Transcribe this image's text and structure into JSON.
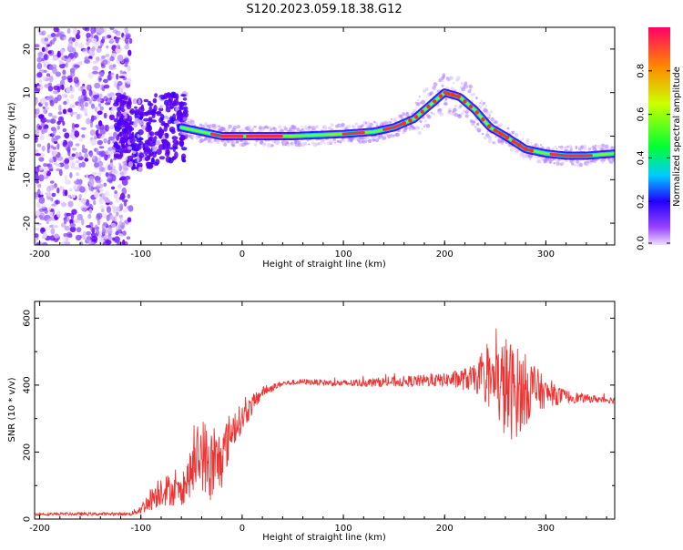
{
  "title": "S120.2023.059.18.38.G12",
  "colors": {
    "snr_line": "#ee3333",
    "spectrogram_ridge": "#ee3333",
    "colorbar_stops": [
      "#eeddff",
      "#7700ff",
      "#0000ff",
      "#00ccff",
      "#00ff33",
      "#ccff00",
      "#ff8800",
      "#ff0066"
    ]
  },
  "chart_data": [
    {
      "id": "spectrogram",
      "type": "heatmap",
      "title": "",
      "xlabel": "Height of straight line (km)",
      "ylabel": "Frequency (Hz)",
      "xlim": [
        -205,
        368
      ],
      "ylim": [
        -25,
        25
      ],
      "x_ticks": [
        -200,
        -100,
        0,
        100,
        200,
        300
      ],
      "y_ticks": [
        -20,
        -10,
        0,
        10,
        20
      ],
      "colorbar": {
        "label": "Normalized spectral amplitude",
        "range": [
          0,
          1
        ],
        "ticks": [
          "0.0",
          "0.2",
          "0.4",
          "0.6",
          "0.8"
        ]
      },
      "ridge": {
        "x": [
          -120,
          -100,
          -80,
          -60,
          -40,
          -20,
          0,
          50,
          100,
          130,
          150,
          170,
          185,
          200,
          215,
          230,
          245,
          260,
          280,
          300,
          320,
          340,
          368
        ],
        "y": [
          2,
          0,
          2,
          2,
          1,
          0,
          0,
          0,
          0.5,
          1,
          2,
          4,
          7,
          10,
          9,
          6,
          2,
          0,
          -3,
          -4,
          -4.5,
          -4.5,
          -4
        ]
      },
      "noise_region": [
        -205,
        -120
      ]
    },
    {
      "id": "snr",
      "type": "line",
      "title": "",
      "xlabel": "Height of straight line (km)",
      "ylabel": "SNR (10 * v/v)",
      "xlim": [
        -205,
        368
      ],
      "ylim": [
        0,
        650
      ],
      "x_ticks": [
        -200,
        -100,
        0,
        100,
        200,
        300
      ],
      "y_ticks": [
        0,
        200,
        400,
        600
      ],
      "envelope": {
        "x": [
          -205,
          -110,
          -100,
          -90,
          -80,
          -60,
          -50,
          -40,
          -30,
          -20,
          -10,
          0,
          10,
          20,
          40,
          60,
          100,
          200,
          230,
          250,
          260,
          270,
          285,
          300,
          320,
          340,
          368
        ],
        "mean": [
          15,
          15,
          30,
          60,
          90,
          80,
          140,
          200,
          150,
          180,
          270,
          300,
          340,
          380,
          405,
          410,
          405,
          415,
          420,
          410,
          390,
          380,
          390,
          375,
          365,
          360,
          355
        ],
        "amplitude": [
          5,
          5,
          15,
          35,
          50,
          40,
          70,
          110,
          120,
          90,
          60,
          40,
          30,
          15,
          8,
          8,
          10,
          20,
          40,
          100,
          160,
          140,
          90,
          40,
          20,
          12,
          10
        ]
      }
    }
  ]
}
